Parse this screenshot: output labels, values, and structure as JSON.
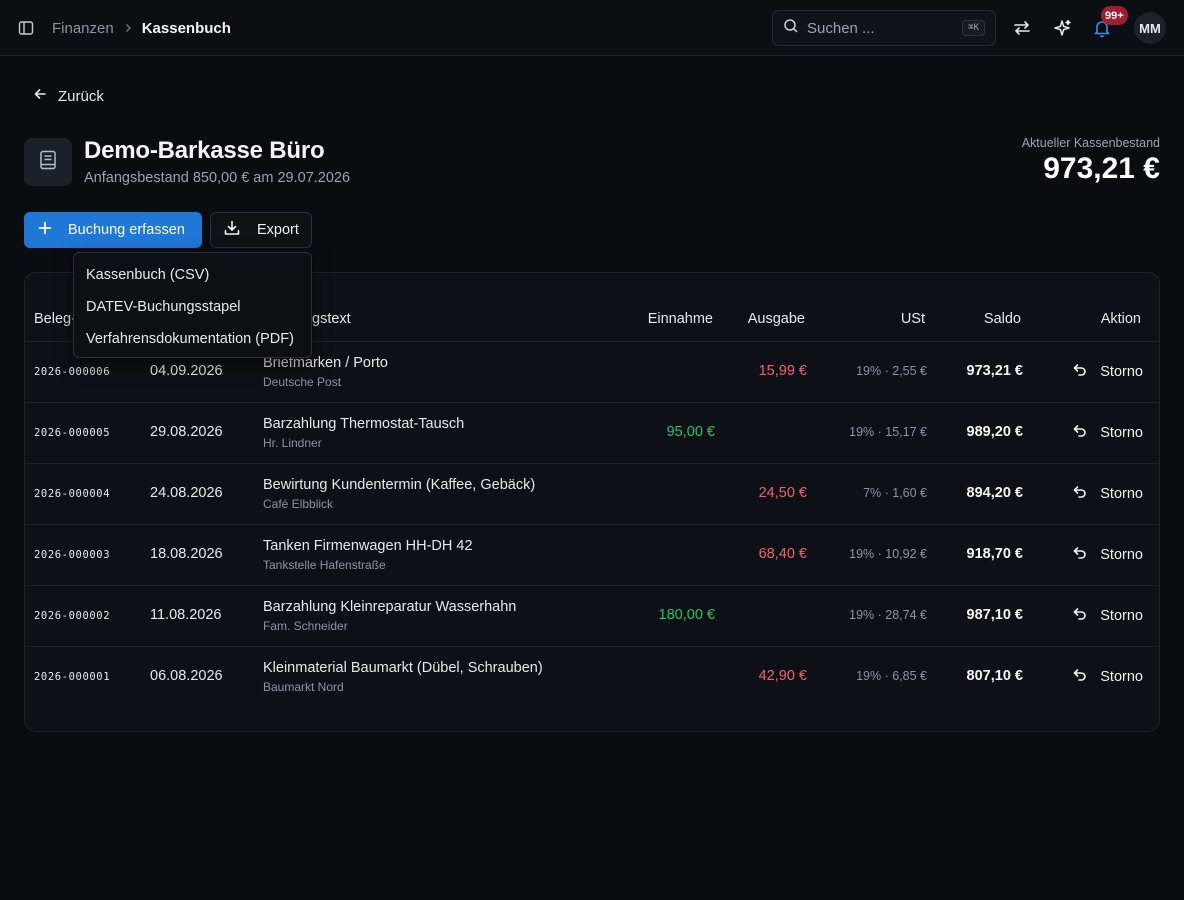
{
  "breadcrumb": {
    "parent": "Finanzen",
    "current": "Kassenbuch"
  },
  "search": {
    "placeholder": "Suchen ...",
    "shortcut": "⌘K"
  },
  "header_icons": {
    "notifications_badge": "99+",
    "avatar_initials": "MM"
  },
  "back_label": "Zurück",
  "cashbook": {
    "title": "Demo-Barkasse Büro",
    "subtitle": "Anfangsbestand 850,00 € am 29.07.2026",
    "balance_label": "Aktueller Kassenbestand",
    "balance_value": "973,21 €"
  },
  "actions": {
    "add_label": "Buchung erfassen",
    "export_label": "Export"
  },
  "export_menu": {
    "items": [
      "Kassenbuch (CSV)",
      "DATEV-Buchungsstapel",
      "Verfahrensdokumentation (PDF)"
    ]
  },
  "table": {
    "columns": {
      "beleg": "Beleg-",
      "datum": "",
      "text": "gstext",
      "einnahme": "Einnahme",
      "ausgabe": "Ausgabe",
      "ust": "USt",
      "saldo": "Saldo",
      "aktion": "Aktion"
    },
    "rows": [
      {
        "beleg": "2026-000006",
        "datum": "04.09.2026",
        "text": "Briefmarken / Porto",
        "party": "Deutsche Post",
        "einnahme": "",
        "ausgabe": "15,99 €",
        "ust": "19% · 2,55 €",
        "saldo": "973,21 €",
        "action": "Storno"
      },
      {
        "beleg": "2026-000005",
        "datum": "29.08.2026",
        "text": "Barzahlung Thermostat-Tausch",
        "party": "Hr. Lindner",
        "einnahme": "95,00 €",
        "ausgabe": "",
        "ust": "19% · 15,17 €",
        "saldo": "989,20 €",
        "action": "Storno"
      },
      {
        "beleg": "2026-000004",
        "datum": "24.08.2026",
        "text": "Bewirtung Kundentermin (Kaffee, Gebäck)",
        "party": "Café Elbblick",
        "einnahme": "",
        "ausgabe": "24,50 €",
        "ust": "7% · 1,60 €",
        "saldo": "894,20 €",
        "action": "Storno"
      },
      {
        "beleg": "2026-000003",
        "datum": "18.08.2026",
        "text": "Tanken Firmenwagen HH-DH 42",
        "party": "Tankstelle Hafenstraße",
        "einnahme": "",
        "ausgabe": "68,40 €",
        "ust": "19% · 10,92 €",
        "saldo": "918,70 €",
        "action": "Storno"
      },
      {
        "beleg": "2026-000002",
        "datum": "11.08.2026",
        "text": "Barzahlung Kleinreparatur Wasserhahn",
        "party": "Fam. Schneider",
        "einnahme": "180,00 €",
        "ausgabe": "",
        "ust": "19% · 28,74 €",
        "saldo": "987,10 €",
        "action": "Storno"
      },
      {
        "beleg": "2026-000001",
        "datum": "06.08.2026",
        "text": "Kleinmaterial Baumarkt (Dübel, Schrauben)",
        "party": "Baumarkt Nord",
        "einnahme": "",
        "ausgabe": "42,90 €",
        "ust": "19% · 6,85 €",
        "saldo": "807,10 €",
        "action": "Storno"
      }
    ]
  },
  "colors": {
    "accent": "#1f78d6",
    "income": "#22c55e",
    "expense": "#f0616d",
    "badge": "#a01f2e",
    "background": "#090c11"
  }
}
